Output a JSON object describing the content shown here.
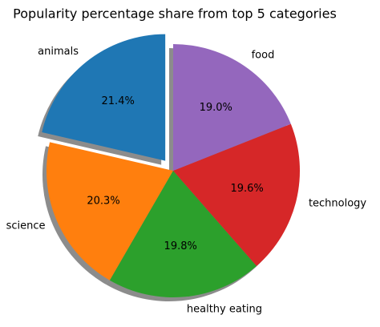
{
  "chart_data": {
    "type": "pie",
    "title": "Popularity percentage share from top 5 categories",
    "categories": [
      "animals",
      "science",
      "healthy eating",
      "technology",
      "food"
    ],
    "values": [
      21.4,
      20.3,
      19.8,
      19.6,
      19.0
    ],
    "value_labels": [
      "21.4%",
      "20.3%",
      "19.8%",
      "19.6%",
      "19.0%"
    ],
    "colors": [
      "#1f77b4",
      "#ff7f0e",
      "#2ca02c",
      "#d62728",
      "#9467bd"
    ],
    "explode": [
      0.1,
      0,
      0,
      0,
      0
    ],
    "startangle": 90,
    "shadow": true
  }
}
